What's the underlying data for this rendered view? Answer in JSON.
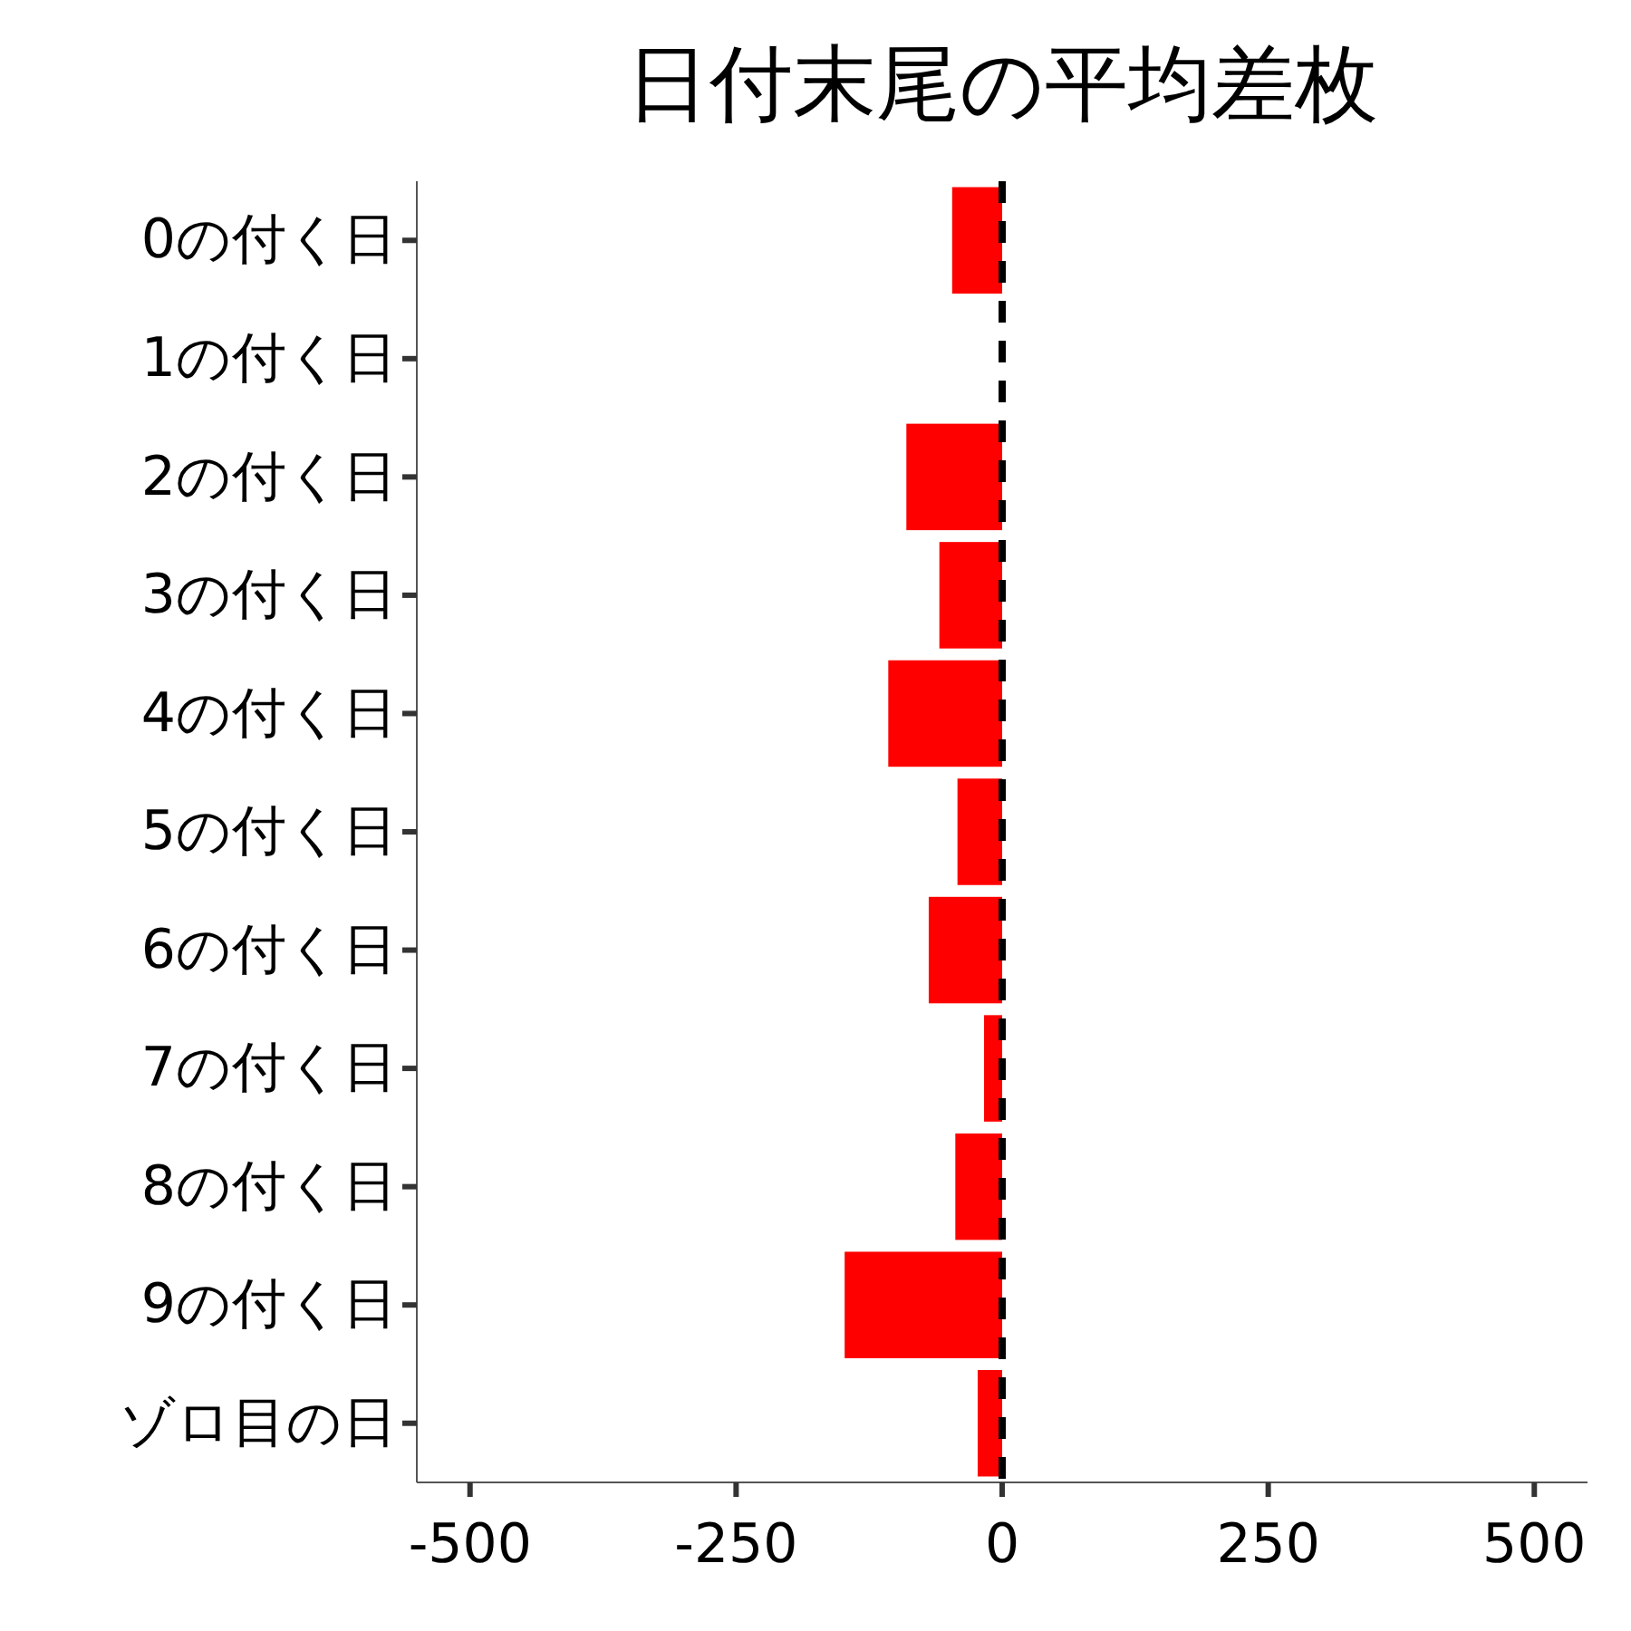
{
  "chart_data": {
    "type": "bar",
    "orientation": "horizontal",
    "title": "日付末尾の平均差枚",
    "categories": [
      "0の付く日",
      "1の付く日",
      "2の付く日",
      "3の付く日",
      "4の付く日",
      "5の付く日",
      "6の付く日",
      "7の付く日",
      "8の付く日",
      "9の付く日",
      "ゾロ目の日"
    ],
    "values": [
      -47,
      null,
      -90,
      -59,
      -107,
      -42,
      -69,
      -17,
      -44,
      -148,
      -23
    ],
    "color": "#ff0000",
    "xlim": [
      -550,
      550
    ],
    "xticks": [
      -500,
      -250,
      0,
      250,
      500
    ],
    "grid": false,
    "ref_lines": [
      {
        "axis": "x",
        "value": 0,
        "color": "#000000",
        "line_style": "dashed"
      }
    ]
  }
}
